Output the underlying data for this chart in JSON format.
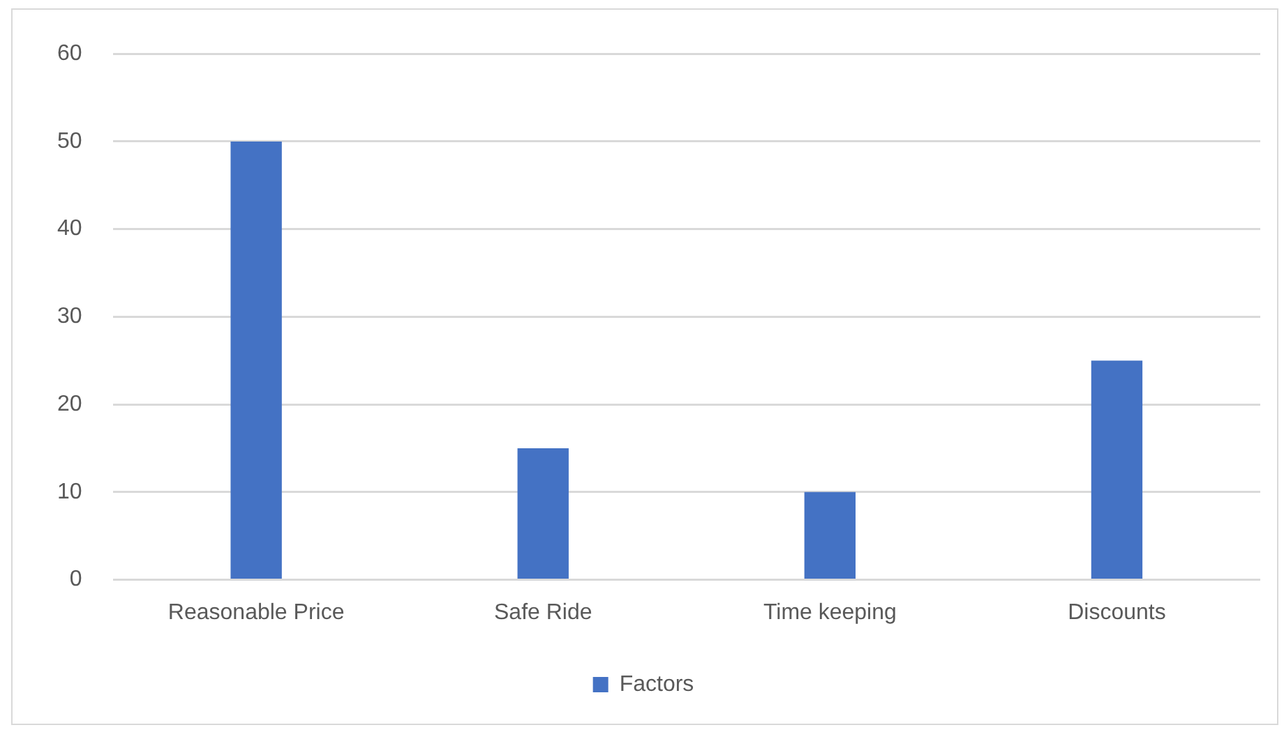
{
  "chart_data": {
    "type": "bar",
    "categories": [
      "Reasonable Price",
      "Safe Ride",
      "Time keeping",
      "Discounts"
    ],
    "series": [
      {
        "name": "Factors",
        "color": "#4472c4",
        "values": [
          50,
          15,
          10,
          25
        ]
      }
    ],
    "ylim": [
      0,
      60
    ],
    "yticks": [
      0,
      10,
      20,
      30,
      40,
      50,
      60
    ],
    "grid": "y",
    "legend": "bottom"
  }
}
